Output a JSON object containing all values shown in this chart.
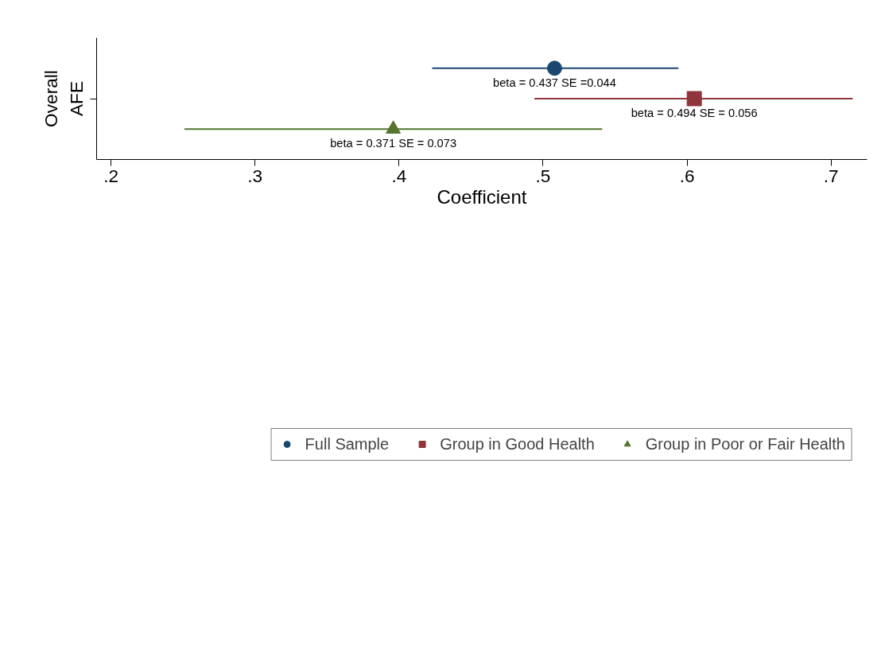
{
  "chart_data": {
    "type": "scatter",
    "orientation": "horizontal",
    "xlabel": "Coefficient",
    "categories": [
      null,
      "Overall AFE",
      null
    ],
    "xlim": [
      0.19,
      0.725
    ],
    "xticks": [
      {
        "value": 0.2,
        "label": ".2"
      },
      {
        "value": 0.3,
        "label": ".3"
      },
      {
        "value": 0.4,
        "label": ".4"
      },
      {
        "value": 0.5,
        "label": ".5"
      },
      {
        "value": 0.6,
        "label": ".6"
      },
      {
        "value": 0.7,
        "label": ".7"
      }
    ],
    "grid": false,
    "legend": "bottom",
    "series": [
      {
        "name": "Full Sample",
        "color": "#1a476f",
        "marker": "circle",
        "values": [
          0.508,
          null,
          null
        ],
        "errors": [
          [
            0.423,
            0.594
          ],
          null,
          null
        ],
        "value_labels": [
          "beta = 0.437 SE =0.044",
          null,
          null
        ]
      },
      {
        "name": "Group in Good Health",
        "color": "#90353b",
        "marker": "square",
        "values": [
          null,
          0.605,
          null
        ],
        "errors": [
          null,
          [
            0.494,
            0.715
          ],
          null
        ],
        "value_labels": [
          null,
          "beta = 0.494 SE = 0.056",
          null
        ]
      },
      {
        "name": "Group in Poor or Fair Health",
        "color": "#55752f",
        "marker": "triangle",
        "values": [
          null,
          null,
          0.396
        ],
        "errors": [
          null,
          null,
          [
            0.251,
            0.541
          ]
        ],
        "value_labels": [
          null,
          null,
          "beta = 0.371 SE = 0.073"
        ]
      }
    ]
  }
}
